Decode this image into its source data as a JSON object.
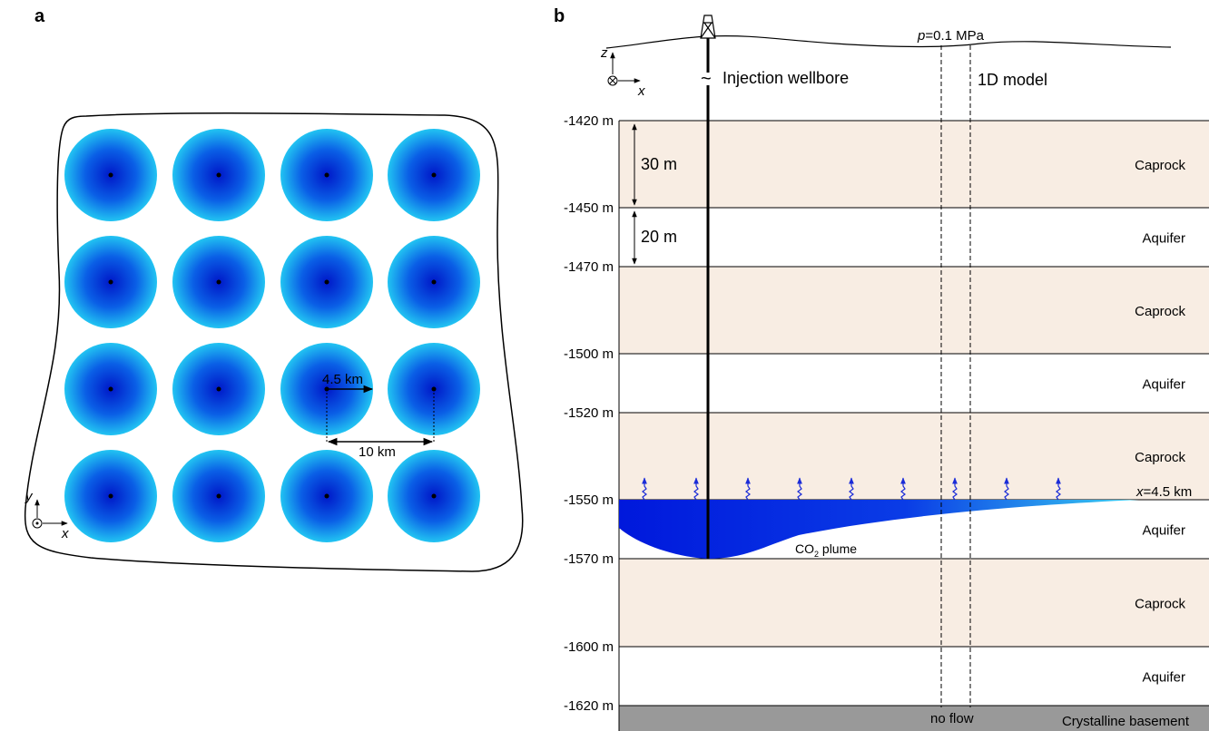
{
  "panel_a": {
    "label": "a",
    "radius_label": "4.5 km",
    "spacing_label": "10 km",
    "axis_y": "y",
    "axis_x": "x"
  },
  "panel_b": {
    "label": "b",
    "axis_z": "z",
    "axis_x": "x",
    "wellbore": "Injection wellbore",
    "pressure_symbol": "p",
    "pressure_value": "=0.1 MPa",
    "model": "1D model",
    "boundary": "no flow",
    "plume_front_symbol": "x",
    "plume_front_value": "=4.5 km",
    "plume_main": "CO",
    "plume_sub": "2",
    "plume_rest": " plume",
    "thickness_labels": [
      "30 m",
      "20 m"
    ],
    "depths": [
      "-1420 m",
      "-1450 m",
      "-1470 m",
      "-1500 m",
      "-1520 m",
      "-1550 m",
      "-1570 m",
      "-1600 m",
      "-1620 m"
    ],
    "layers": [
      "Caprock",
      "Aquifer",
      "Caprock",
      "Aquifer",
      "Caprock",
      "Aquifer",
      "Caprock",
      "Aquifer",
      "Crystalline basement"
    ]
  }
}
